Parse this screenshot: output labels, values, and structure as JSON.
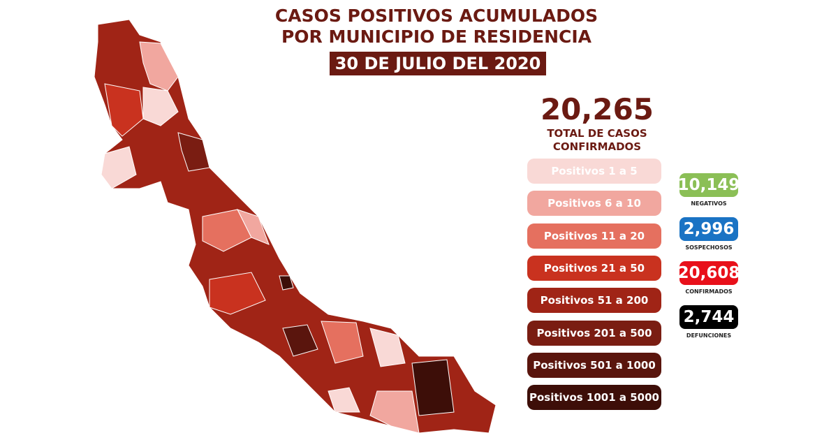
{
  "header": {
    "title_lines": [
      "CASOS POSITIVOS ACUMULADOS",
      "POR MUNICIPIO DE RESIDENCIA"
    ],
    "date": "30 DE JULIO DEL 2020"
  },
  "total": {
    "value": "20,265",
    "label_lines": [
      "TOTAL DE CASOS",
      "CONFIRMADOS"
    ]
  },
  "legend": {
    "items": [
      {
        "label": "Positivos 1 a 5",
        "color": "#f9d9d6"
      },
      {
        "label": "Positivos 6 a 10",
        "color": "#f1a79f"
      },
      {
        "label": "Positivos 11 a 20",
        "color": "#e5705f"
      },
      {
        "label": "Positivos 21 a 50",
        "color": "#c9321f"
      },
      {
        "label": "Positivos 51 a 200",
        "color": "#a02416"
      },
      {
        "label": "Positivos 201 a 500",
        "color": "#7a1d12"
      },
      {
        "label": "Positivos 501 a 1000",
        "color": "#5a150d"
      },
      {
        "label": "Positivos 1001 a 5000",
        "color": "#3d0e08"
      }
    ]
  },
  "stats": [
    {
      "value": "10,149",
      "label": "NEGATIVOS",
      "color": "#8bbf56"
    },
    {
      "value": "2,996",
      "label": "SOSPECHOSOS",
      "color": "#1a73c4"
    },
    {
      "value": "20,608",
      "label": "CONFIRMADOS",
      "color": "#e8101a"
    },
    {
      "value": "2,744",
      "label": "DEFUNCIONES",
      "color": "#000000"
    }
  ]
}
